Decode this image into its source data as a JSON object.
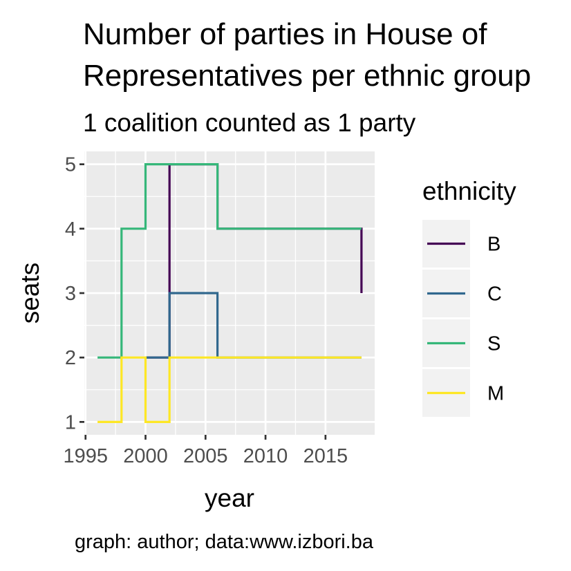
{
  "chart_data": {
    "type": "line",
    "step": true,
    "title": "Number of parties in House of Representatives per ethnic group",
    "title_lines": [
      "Number of parties in House of",
      "Representatives per ethnic group"
    ],
    "subtitle": "1 coalition counted as 1 party",
    "xlabel": "year",
    "ylabel": "seats",
    "caption": "graph: author; data:www.izbori.ba",
    "xlim": [
      1994.9,
      2019.1
    ],
    "ylim": [
      0.8,
      5.2
    ],
    "x_ticks": [
      1995,
      2000,
      2005,
      2010,
      2015
    ],
    "y_ticks": [
      1,
      2,
      3,
      4,
      5
    ],
    "legend_title": "ethnicity",
    "legend_position": "right",
    "grid": true,
    "panel_background": "#ebebeb",
    "series": [
      {
        "name": "B",
        "color": "#440154",
        "x": [
          2000,
          2002,
          2006,
          2010,
          2014,
          2018
        ],
        "values": [
          2,
          5,
          4,
          4,
          4,
          3
        ]
      },
      {
        "name": "C",
        "color": "#31688e",
        "x": [
          2000,
          2002,
          2006,
          2010,
          2014,
          2018
        ],
        "values": [
          2,
          3,
          2,
          2,
          2,
          2
        ]
      },
      {
        "name": "S",
        "color": "#35b779",
        "x": [
          1996,
          1998,
          2000,
          2002,
          2006,
          2010,
          2014,
          2018
        ],
        "values": [
          2,
          4,
          5,
          5,
          4,
          4,
          4,
          4
        ]
      },
      {
        "name": "M",
        "color": "#fde725",
        "x": [
          1996,
          1998,
          2000,
          2002,
          2006,
          2010,
          2014,
          2018
        ],
        "values": [
          1,
          2,
          1,
          2,
          2,
          2,
          2,
          2
        ]
      }
    ]
  }
}
